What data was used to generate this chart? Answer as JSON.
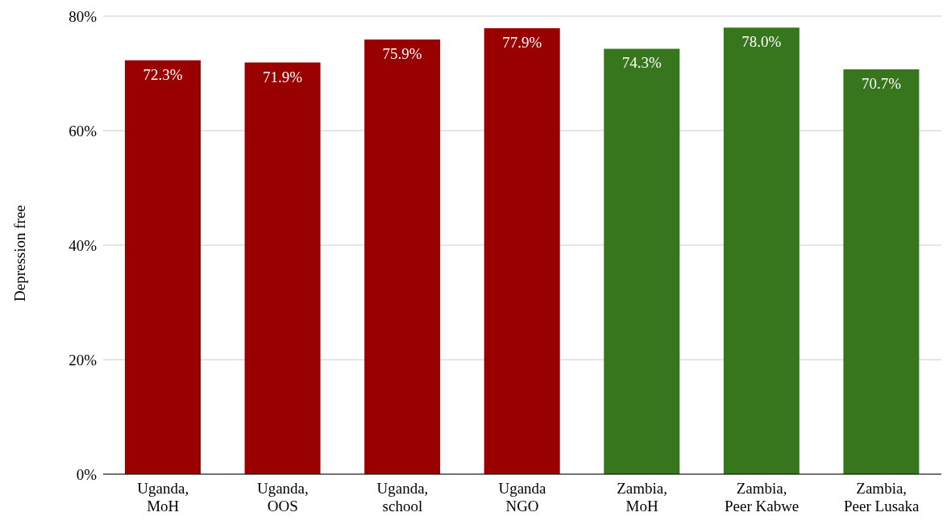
{
  "chart_data": {
    "type": "bar",
    "ylabel": "Depression free",
    "categories": [
      "Uganda,\nMoH",
      "Uganda,\nOOS",
      "Uganda,\nschool",
      "Uganda\nNGO",
      "Zambia,\nMoH",
      "Zambia,\nPeer Kabwe",
      "Zambia,\nPeer Lusaka"
    ],
    "values": [
      72.3,
      71.9,
      75.9,
      77.9,
      74.3,
      78.0,
      70.7
    ],
    "colors": [
      "#990000",
      "#990000",
      "#990000",
      "#990000",
      "#38761d",
      "#38761d",
      "#38761d"
    ],
    "value_labels": [
      "72.3%",
      "71.9%",
      "75.9%",
      "77.9%",
      "74.3%",
      "78.0%",
      "70.7%"
    ],
    "ylim": [
      0,
      80
    ],
    "yticks": [
      {
        "value": 0,
        "label": "0%"
      },
      {
        "value": 20,
        "label": "20%"
      },
      {
        "value": 40,
        "label": "40%"
      },
      {
        "value": 60,
        "label": "60%"
      },
      {
        "value": 80,
        "label": "80%"
      }
    ],
    "grid": "y",
    "legend": false
  }
}
